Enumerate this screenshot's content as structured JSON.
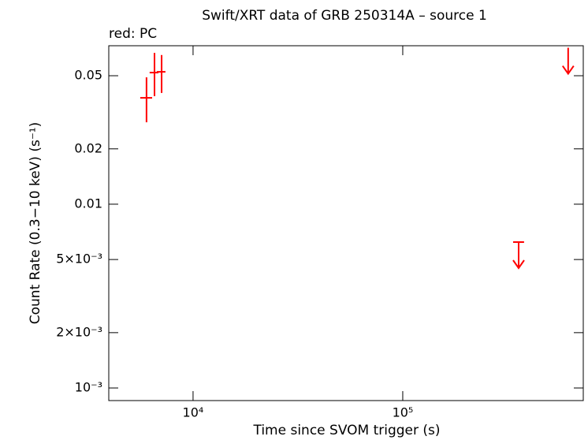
{
  "chart_data": {
    "type": "scatter",
    "title": "Swift/XRT data of GRB 250314A – source 1",
    "subtitle": "red: PC",
    "x_label": "Time since SVOM trigger (s)",
    "y_label": "Count Rate (0.3−10 keV) (s⁻¹)",
    "x_log": true,
    "y_log": true,
    "xlim": [
      3963,
      726000
    ],
    "ylim": [
      0.000854,
      0.0728
    ],
    "xticks": [
      {
        "value": 10000,
        "label": "10⁴"
      },
      {
        "value": 100000,
        "label": "10⁵"
      }
    ],
    "yticks": [
      {
        "value": 0.001,
        "label": "10⁻³"
      },
      {
        "value": 0.002,
        "label": "2×10⁻³"
      },
      {
        "value": 0.005,
        "label": "5×10⁻³"
      },
      0.01,
      0.02,
      0.05
    ],
    "series": [
      {
        "name": "PC",
        "color": "#ff0000",
        "x": [
          5998,
          6548,
          7080
        ],
        "x_low": [
          5598,
          6207,
          6715
        ],
        "x_high": [
          6381,
          6839,
          7385
        ],
        "values": [
          0.0379,
          0.052,
          0.0525
        ],
        "y_low": [
          0.0279,
          0.0387,
          0.0403
        ],
        "y_high": [
          0.049,
          0.0666,
          0.0648
        ]
      },
      {
        "name": "PC upper limits",
        "color": "#ff0000",
        "upper_limit": true,
        "x": [
          357000,
          615000
        ],
        "x_low": [
          336000,
          null
        ],
        "x_high": [
          379000,
          null
        ],
        "values": [
          0.00622,
          0.071
        ]
      }
    ]
  }
}
